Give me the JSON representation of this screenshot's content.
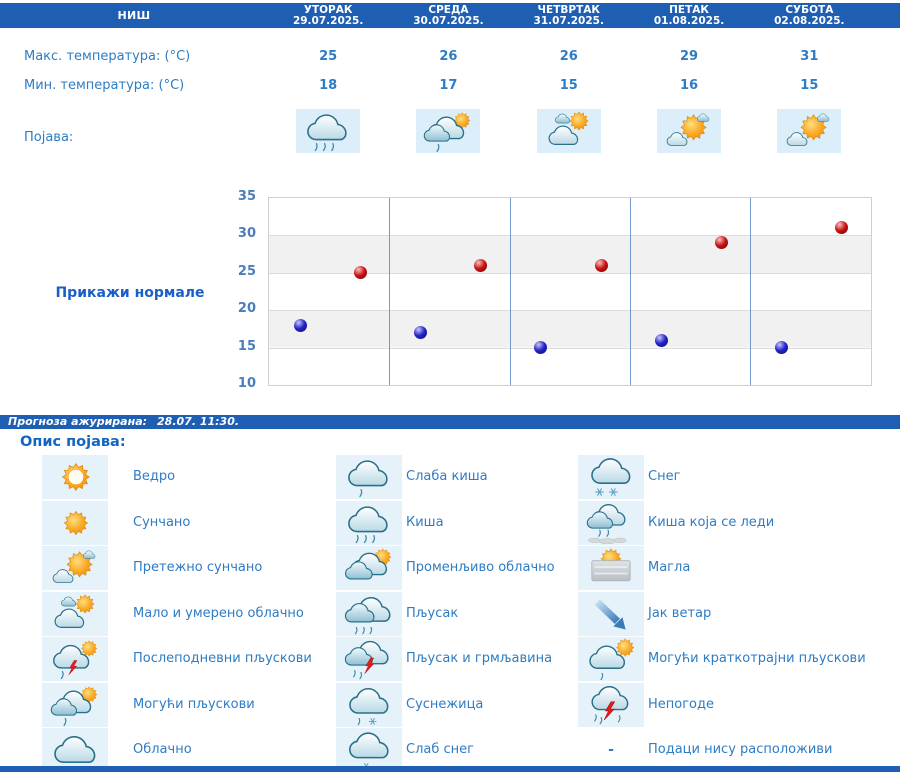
{
  "colors": {
    "header_bg": "#1e5fb4",
    "row_text_blue": "#2e7cc3",
    "strong_blue": "#1a5fc8",
    "axis_label_blue": "#4b7dbc",
    "dot_max_red": "#cc1111",
    "dot_min_blue": "#2222cc",
    "phenomenon_tile_bg": "#dceefa",
    "legend_tile_bg": "#e6f2fa",
    "band_gray": "#f1f1f1",
    "column_separator": "#6f9ac9"
  },
  "table": {
    "location": "НИШ",
    "days": [
      {
        "name": "УТОРАК",
        "date": "29.07.2025."
      },
      {
        "name": "СРЕДА",
        "date": "30.07.2025."
      },
      {
        "name": "ЧЕТВРТАК",
        "date": "31.07.2025."
      },
      {
        "name": "ПЕТАК",
        "date": "01.08.2025."
      },
      {
        "name": "СУБОТА",
        "date": "02.08.2025."
      }
    ],
    "max_label": "Макс. температура: (°C)",
    "min_label": "Мин. температура: (°C)",
    "phenomenon_label": "Појава:",
    "max_values": [
      "25",
      "26",
      "26",
      "29",
      "31"
    ],
    "min_values": [
      "18",
      "17",
      "15",
      "16",
      "15"
    ],
    "phenomenon_icons": [
      "kisa",
      "moguci-pljuskovi",
      "malo-umereno",
      "pretezno-suncano",
      "pretezno-suncano"
    ]
  },
  "chart": {
    "show_normals_label": "Прикажи нормале"
  },
  "chart_data": {
    "type": "scatter",
    "categories": [
      "УТОРАК 29.07.2025.",
      "СРЕДА 30.07.2025.",
      "ЧЕТВРТАК 31.07.2025.",
      "ПЕТАК 01.08.2025.",
      "СУБОТА 02.08.2025."
    ],
    "series": [
      {
        "name": "Макс. температура (°C)",
        "color": "#cc1111",
        "values": [
          25,
          26,
          26,
          29,
          31
        ]
      },
      {
        "name": "Мин. температура (°C)",
        "color": "#2222cc",
        "values": [
          18,
          17,
          15,
          16,
          15
        ]
      }
    ],
    "ylim": [
      10,
      35
    ],
    "yticks": [
      35,
      30,
      25,
      20,
      15,
      10
    ],
    "grid": "alternating-horizontal-bands",
    "legend_position": "none"
  },
  "updated": {
    "prefix": "Прогноза ажурирана:",
    "value": "28.07. 11:30."
  },
  "legend": {
    "title": "Опис појава:",
    "columns": [
      [
        {
          "icon": "vedro",
          "label": "Ведро"
        },
        {
          "icon": "suncano",
          "label": "Сунчано"
        },
        {
          "icon": "pretezno-suncano",
          "label": "Претежно сунчано"
        },
        {
          "icon": "malo-umereno",
          "label": "Мало и умерено облачно"
        },
        {
          "icon": "poslepodnevni-pljuskovi",
          "label": "Послеподневни пљускови"
        },
        {
          "icon": "moguci-pljuskovi",
          "label": "Могући пљускови"
        },
        {
          "icon": "oblacno",
          "label": "Облачно"
        }
      ],
      [
        {
          "icon": "slaba-kisa",
          "label": "Слаба киша"
        },
        {
          "icon": "kisa",
          "label": "Киша"
        },
        {
          "icon": "promenljivo-oblacno",
          "label": "Променљиво облачно"
        },
        {
          "icon": "pljusak",
          "label": "Пљусак"
        },
        {
          "icon": "pljusak-grmljavina",
          "label": "Пљусак и грмљавина"
        },
        {
          "icon": "susnezica",
          "label": "Суснежица"
        },
        {
          "icon": "slab-sneg",
          "label": "Слаб снег"
        }
      ],
      [
        {
          "icon": "sneg",
          "label": "Снег"
        },
        {
          "icon": "ledena-kisa",
          "label": "Киша која се леди"
        },
        {
          "icon": "magla",
          "label": "Магла"
        },
        {
          "icon": "jak-vetar",
          "label": "Јак ветар"
        },
        {
          "icon": "kratkotrajni-pljuskovi",
          "label": "Могући краткотрајни пљускови"
        },
        {
          "icon": "nepogode",
          "label": "Непогоде"
        },
        {
          "icon": "dash",
          "label": "Подаци нису расположиви"
        }
      ]
    ]
  }
}
